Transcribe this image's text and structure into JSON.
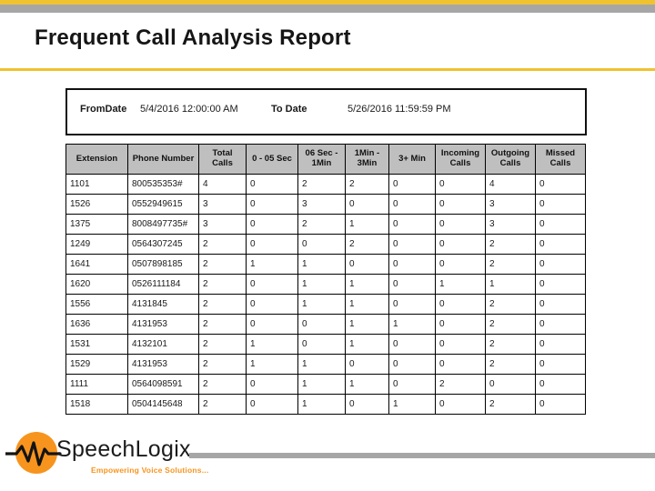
{
  "slide": {
    "title": "Frequent Call Analysis Report"
  },
  "report": {
    "from_label": "FromDate",
    "from_value": "5/4/2016 12:00:00 AM",
    "to_label": "To Date",
    "to_value": "5/26/2016 11:59:59 PM"
  },
  "table": {
    "columns": [
      "Extension",
      "Phone Number",
      "Total Calls",
      "0 - 05 Sec",
      "06 Sec - 1Min",
      "1Min - 3Min",
      "3+ Min",
      "Incoming Calls",
      "Outgoing Calls",
      "Missed Calls"
    ],
    "rows": [
      [
        "1101",
        "800535353#",
        "4",
        "0",
        "2",
        "2",
        "0",
        "0",
        "4",
        "0"
      ],
      [
        "1526",
        "0552949615",
        "3",
        "0",
        "3",
        "0",
        "0",
        "0",
        "3",
        "0"
      ],
      [
        "1375",
        "8008497735#",
        "3",
        "0",
        "2",
        "1",
        "0",
        "0",
        "3",
        "0"
      ],
      [
        "1249",
        "0564307245",
        "2",
        "0",
        "0",
        "2",
        "0",
        "0",
        "2",
        "0"
      ],
      [
        "1641",
        "0507898185",
        "2",
        "1",
        "1",
        "0",
        "0",
        "0",
        "2",
        "0"
      ],
      [
        "1620",
        "0526111184",
        "2",
        "0",
        "1",
        "1",
        "0",
        "1",
        "1",
        "0"
      ],
      [
        "1556",
        "4131845",
        "2",
        "0",
        "1",
        "1",
        "0",
        "0",
        "2",
        "0"
      ],
      [
        "1636",
        "4131953",
        "2",
        "0",
        "0",
        "1",
        "1",
        "0",
        "2",
        "0"
      ],
      [
        "1531",
        "4132101",
        "2",
        "1",
        "0",
        "1",
        "0",
        "0",
        "2",
        "0"
      ],
      [
        "1529",
        "4131953",
        "2",
        "1",
        "1",
        "0",
        "0",
        "0",
        "2",
        "0"
      ],
      [
        "1111",
        "0564098591",
        "2",
        "0",
        "1",
        "1",
        "0",
        "2",
        "0",
        "0"
      ],
      [
        "1518",
        "0504145648",
        "2",
        "0",
        "1",
        "0",
        "1",
        "0",
        "2",
        "0"
      ]
    ]
  },
  "logo": {
    "name": "SpeechLogix",
    "tagline": "Empowering Voice Solutions..."
  },
  "colors": {
    "accent_yellow": "#efc230",
    "gray_bar": "#a6a6a6",
    "table_header_bg": "#bfbfbf",
    "logo_orange": "#f7941e"
  }
}
